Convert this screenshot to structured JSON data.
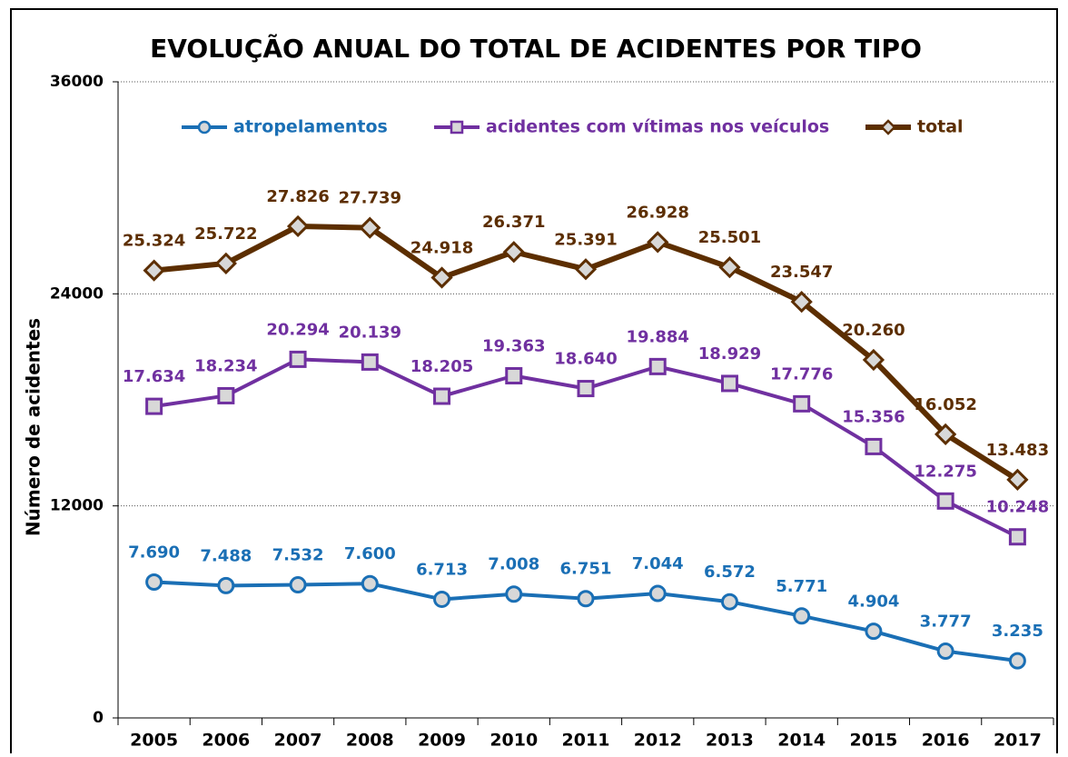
{
  "chart_data": {
    "type": "line",
    "title": "EVOLUÇÃO ANUAL DO TOTAL DE ACIDENTES POR TIPO",
    "y_label": "Número de acidentes",
    "categories": [
      "2005",
      "2006",
      "2007",
      "2008",
      "2009",
      "2010",
      "2011",
      "2012",
      "2013",
      "2014",
      "2015",
      "2016",
      "2017"
    ],
    "ylim": [
      0,
      36000
    ],
    "yticks": [
      0,
      12000,
      24000,
      36000
    ],
    "grid": true,
    "legend": "top",
    "series": [
      {
        "name": "atropelamentos",
        "color": "#1a6fb5",
        "marker": "circle",
        "values": [
          7690,
          7488,
          7532,
          7600,
          6713,
          7008,
          6751,
          7044,
          6572,
          5771,
          4904,
          3777,
          3235
        ],
        "value_labels": [
          "7.690",
          "7.488",
          "7.532",
          "7.600",
          "6.713",
          "7.008",
          "6.751",
          "7.044",
          "6.572",
          "5.771",
          "4.904",
          "3.777",
          "3.235"
        ]
      },
      {
        "name": "acidentes com vítimas nos veículos",
        "color": "#7030a0",
        "marker": "square",
        "values": [
          17634,
          18234,
          20294,
          20139,
          18205,
          19363,
          18640,
          19884,
          18929,
          17776,
          15356,
          12275,
          10248
        ],
        "value_labels": [
          "17.634",
          "18.234",
          "20.294",
          "20.139",
          "18.205",
          "19.363",
          "18.640",
          "19.884",
          "18.929",
          "17.776",
          "15.356",
          "12.275",
          "10.248"
        ]
      },
      {
        "name": "total",
        "color": "#5c2e00",
        "marker": "diamond",
        "values": [
          25324,
          25722,
          27826,
          27739,
          24918,
          26371,
          25391,
          26928,
          25501,
          23547,
          20260,
          16052,
          13483
        ],
        "value_labels": [
          "25.324",
          "25.722",
          "27.826",
          "27.739",
          "24.918",
          "26.371",
          "25.391",
          "26.928",
          "25.501",
          "23.547",
          "20.260",
          "16.052",
          "13.483"
        ]
      }
    ]
  }
}
